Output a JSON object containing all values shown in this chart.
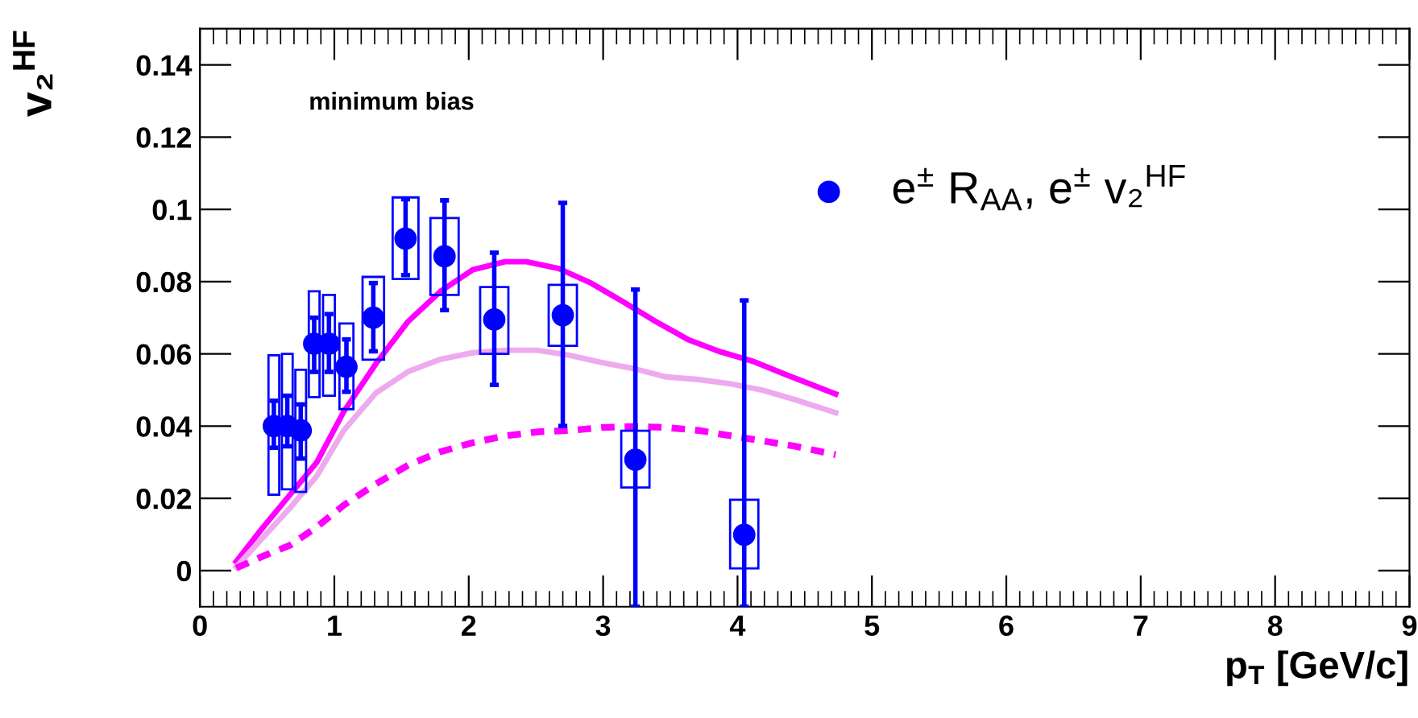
{
  "chart_data": {
    "type": "scatter",
    "xlabel": "p$_{T}$ [GeV/c]",
    "ylabel": "v₂$^{HF}$",
    "annotations": [
      "minimum bias"
    ],
    "xlim": [
      0,
      9
    ],
    "ylim": [
      -0.01,
      0.15
    ],
    "xticks": [
      0,
      1,
      2,
      3,
      4,
      5,
      6,
      7,
      8,
      9
    ],
    "yticks": [
      0,
      0.02,
      0.04,
      0.06,
      0.08,
      0.1,
      0.12,
      0.14
    ],
    "grid": false,
    "legend": "top right",
    "marker": "circle",
    "series": [
      {
        "type": "bar",
        "color": "#0000ff",
        "x": [
          0.55,
          0.65,
          0.75,
          0.85,
          0.96,
          1.09,
          1.29,
          1.53,
          1.82,
          2.19,
          2.7,
          3.24,
          4.05
        ],
        "base": [
          0.021,
          0.0225,
          0.0218,
          0.048,
          0.0484,
          0.0447,
          0.0584,
          0.0807,
          0.0763,
          0.06,
          0.0622,
          0.023,
          0.0006
        ],
        "values": [
          0.0386,
          0.0375,
          0.0338,
          0.0293,
          0.0279,
          0.0237,
          0.0229,
          0.0226,
          0.0213,
          0.0185,
          0.0169,
          0.0157,
          0.019
        ]
      },
      {
        "type": "line",
        "color": "#ff00ff",
        "line_style": "solid",
        "marker": "none",
        "x": [
          0.27,
          0.47,
          0.67,
          0.87,
          1.07,
          1.31,
          1.55,
          1.79,
          2.03,
          2.27,
          2.43,
          2.67,
          2.91,
          3.15,
          3.39,
          3.63,
          3.87,
          4.11,
          4.35,
          4.73
        ],
        "values": [
          0.0025,
          0.012,
          0.021,
          0.03,
          0.044,
          0.0573,
          0.069,
          0.0773,
          0.0833,
          0.0855,
          0.0855,
          0.0836,
          0.0796,
          0.0744,
          0.069,
          0.064,
          0.0606,
          0.058,
          0.0544,
          0.0489
        ]
      },
      {
        "type": "line",
        "color": "#eeaaee",
        "line_style": "solid",
        "marker": "none",
        "x": [
          0.27,
          0.47,
          0.67,
          0.87,
          1.07,
          1.31,
          1.55,
          1.79,
          2.03,
          2.27,
          2.51,
          2.75,
          2.99,
          3.23,
          3.47,
          3.71,
          3.95,
          4.19,
          4.43,
          4.73
        ],
        "values": [
          0.001,
          0.0092,
          0.0173,
          0.0262,
          0.0388,
          0.0492,
          0.0551,
          0.0585,
          0.0603,
          0.061,
          0.061,
          0.0596,
          0.0576,
          0.0559,
          0.0536,
          0.0529,
          0.0517,
          0.0499,
          0.0473,
          0.0437
        ]
      },
      {
        "type": "line",
        "color": "#ff00ff",
        "line_style": "dashed",
        "marker": "none",
        "x": [
          0.27,
          0.47,
          0.67,
          0.87,
          1.07,
          1.31,
          1.55,
          1.79,
          2.03,
          2.27,
          2.51,
          2.75,
          2.99,
          3.23,
          3.47,
          3.71,
          3.95,
          4.19,
          4.43,
          4.73
        ],
        "values": [
          0.0007,
          0.004,
          0.007,
          0.0121,
          0.0181,
          0.024,
          0.0292,
          0.0329,
          0.0354,
          0.0373,
          0.0384,
          0.0388,
          0.0396,
          0.0399,
          0.0396,
          0.0388,
          0.0373,
          0.0359,
          0.0344,
          0.0321
        ]
      },
      {
        "type": "scatter",
        "name": "e$^{±}$ R$_{AA}$, e$^{±}$ v₂$^{HF}$",
        "color": "#0000ff",
        "x": [
          0.55,
          0.65,
          0.75,
          0.85,
          0.96,
          1.09,
          1.29,
          1.53,
          1.82,
          2.19,
          2.7,
          3.24,
          4.05
        ],
        "values": [
          0.04,
          0.04,
          0.0388,
          0.0628,
          0.0628,
          0.0564,
          0.07,
          0.0919,
          0.087,
          0.0695,
          0.0707,
          0.0307,
          0.0099
        ],
        "errors": [
          [
            0.034,
            0.047
          ],
          [
            0.0344,
            0.0484
          ],
          [
            0.031,
            0.046
          ],
          [
            0.055,
            0.07
          ],
          [
            0.055,
            0.071
          ],
          [
            0.0495,
            0.064
          ],
          [
            0.0607,
            0.0796
          ],
          [
            0.0818,
            0.1028
          ],
          [
            0.0721,
            0.1025
          ],
          [
            0.0514,
            0.088
          ],
          [
            0.04,
            0.1018
          ],
          [
            -0.01,
            0.0778
          ],
          [
            -0.01,
            0.0748
          ]
        ]
      }
    ]
  }
}
